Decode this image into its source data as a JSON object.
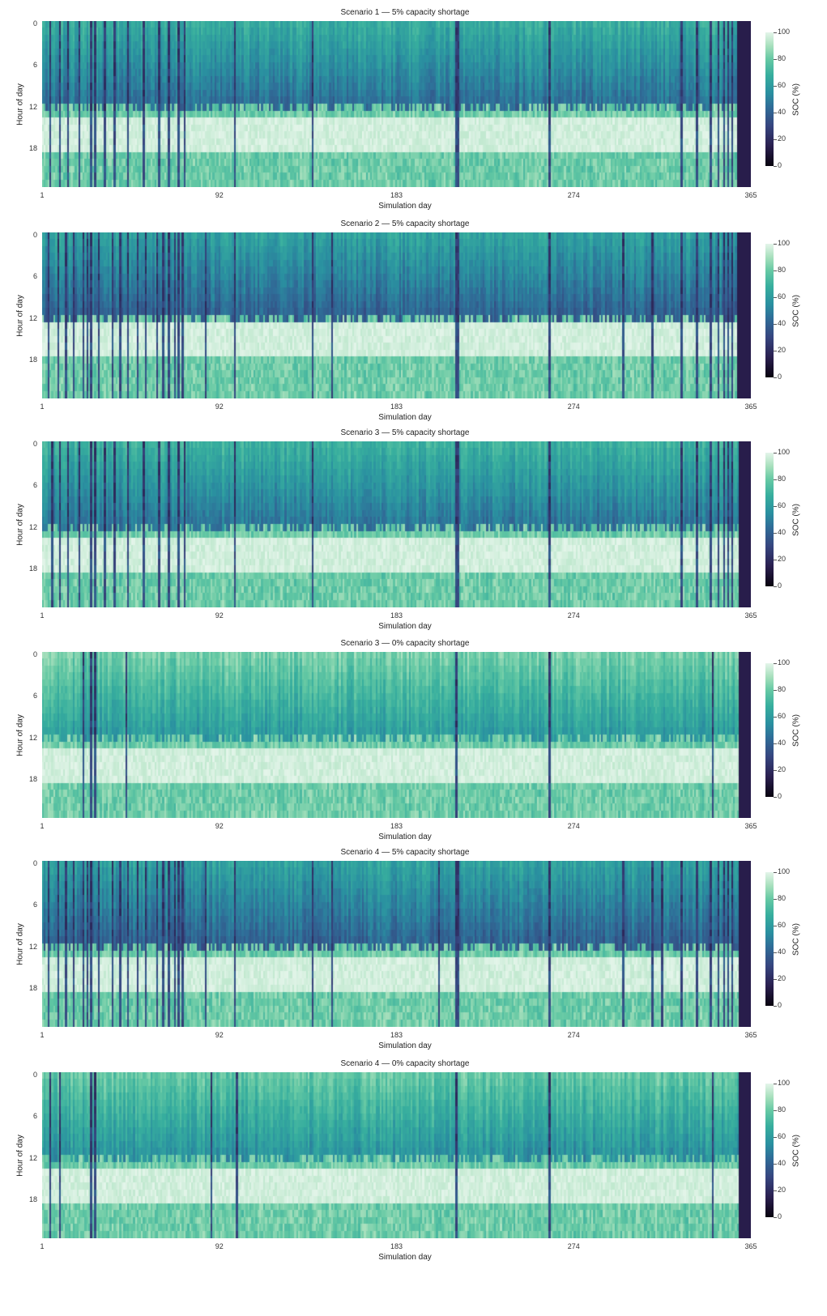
{
  "chart_data": [
    {
      "type": "heatmap",
      "title": "Scenario 1 — 5% capacity shortage",
      "xlabel": "Simulation day",
      "ylabel": "Hour of day",
      "x_ticks": [
        "1",
        "92",
        "183",
        "274",
        "365"
      ],
      "y_ticks": [
        "0",
        "6",
        "12",
        "18"
      ],
      "colorbar": {
        "label": "SOC (%)",
        "ticks": [
          "0",
          "20",
          "40",
          "60",
          "80",
          "100"
        ],
        "range": [
          0,
          100
        ]
      },
      "x_range": [
        1,
        365
      ],
      "y_range": [
        0,
        23
      ],
      "dark_days": [
        5,
        10,
        14,
        20,
        26,
        28,
        33,
        38,
        45,
        53,
        61,
        66,
        71,
        74,
        100,
        140,
        214,
        215,
        262,
        330,
        338,
        345,
        349,
        352,
        354,
        356
      ],
      "last_empty_day": 358,
      "daytime_full_hours": [
        14,
        18
      ],
      "base_soc": 60
    },
    {
      "type": "heatmap",
      "title": "Scenario 2 — 5% capacity shortage",
      "xlabel": "Simulation day",
      "ylabel": "Hour of day",
      "x_ticks": [
        "1",
        "92",
        "183",
        "274",
        "365"
      ],
      "y_ticks": [
        "0",
        "6",
        "12",
        "18"
      ],
      "colorbar": {
        "label": "SOC (%)",
        "ticks": [
          "0",
          "20",
          "40",
          "60",
          "80",
          "100"
        ],
        "range": [
          0,
          100
        ]
      },
      "x_range": [
        1,
        365
      ],
      "y_range": [
        0,
        23
      ],
      "dark_days": [
        4,
        9,
        13,
        17,
        22,
        24,
        26,
        30,
        37,
        41,
        45,
        50,
        54,
        60,
        63,
        66,
        69,
        71,
        73,
        85,
        100,
        140,
        150,
        214,
        215,
        262,
        300,
        315,
        330,
        338,
        345,
        349,
        352,
        354,
        356
      ],
      "last_empty_day": 358,
      "daytime_full_hours": [
        13,
        17
      ],
      "base_soc": 55
    },
    {
      "type": "heatmap",
      "title": "Scenario 3 — 5% capacity shortage",
      "xlabel": "Simulation day",
      "ylabel": "Hour of day",
      "x_ticks": [
        "1",
        "92",
        "183",
        "274",
        "365"
      ],
      "y_ticks": [
        "0",
        "6",
        "12",
        "18"
      ],
      "colorbar": {
        "label": "SOC (%)",
        "ticks": [
          "0",
          "20",
          "40",
          "60",
          "80",
          "100"
        ],
        "range": [
          0,
          100
        ]
      },
      "x_range": [
        1,
        365
      ],
      "y_range": [
        0,
        23
      ],
      "dark_days": [
        6,
        10,
        14,
        20,
        26,
        28,
        33,
        38,
        45,
        53,
        61,
        66,
        71,
        74,
        100,
        140,
        214,
        215,
        262,
        330,
        338,
        345,
        349,
        352,
        354,
        356
      ],
      "last_empty_day": 359,
      "daytime_full_hours": [
        14,
        18
      ],
      "base_soc": 62
    },
    {
      "type": "heatmap",
      "title": "Scenario 3 — 0% capacity shortage",
      "xlabel": "Simulation day",
      "ylabel": "Hour of day",
      "x_ticks": [
        "1",
        "92",
        "183",
        "274",
        "365"
      ],
      "y_ticks": [
        "0",
        "6",
        "12",
        "18"
      ],
      "colorbar": {
        "label": "SOC (%)",
        "ticks": [
          "0",
          "20",
          "40",
          "60",
          "80",
          "100"
        ],
        "range": [
          0,
          100
        ]
      },
      "x_range": [
        1,
        365
      ],
      "y_range": [
        0,
        23
      ],
      "dark_days": [
        22,
        26,
        28,
        44,
        214,
        262,
        346
      ],
      "last_empty_day": 359,
      "daytime_full_hours": [
        14,
        18
      ],
      "base_soc": 75
    },
    {
      "type": "heatmap",
      "title": "Scenario 4 — 5% capacity shortage",
      "xlabel": "Simulation day",
      "ylabel": "Hour of day",
      "x_ticks": [
        "1",
        "92",
        "183",
        "274",
        "365"
      ],
      "y_ticks": [
        "0",
        "6",
        "12",
        "18"
      ],
      "colorbar": {
        "label": "SOC (%)",
        "ticks": [
          "0",
          "20",
          "40",
          "60",
          "80",
          "100"
        ],
        "range": [
          0,
          100
        ]
      },
      "x_range": [
        1,
        365
      ],
      "y_range": [
        0,
        23
      ],
      "dark_days": [
        4,
        9,
        13,
        17,
        22,
        24,
        26,
        30,
        37,
        41,
        45,
        50,
        54,
        60,
        63,
        66,
        69,
        71,
        73,
        85,
        100,
        140,
        150,
        205,
        214,
        215,
        262,
        300,
        315,
        320,
        330,
        338,
        345,
        349,
        352,
        354,
        356
      ],
      "last_empty_day": 359,
      "daytime_full_hours": [
        14,
        18
      ],
      "base_soc": 55
    },
    {
      "type": "heatmap",
      "title": "Scenario 4 — 0% capacity shortage",
      "xlabel": "Simulation day",
      "ylabel": "Hour of day",
      "x_ticks": [
        "1",
        "92",
        "183",
        "274",
        "365"
      ],
      "y_ticks": [
        "0",
        "6",
        "12",
        "18"
      ],
      "colorbar": {
        "label": "SOC (%)",
        "ticks": [
          "0",
          "20",
          "40",
          "60",
          "80",
          "100"
        ],
        "range": [
          0,
          100
        ]
      },
      "x_range": [
        1,
        365
      ],
      "y_range": [
        0,
        23
      ],
      "dark_days": [
        5,
        10,
        26,
        28,
        88,
        101,
        214,
        262,
        346
      ],
      "last_empty_day": 359,
      "daytime_full_hours": [
        14,
        18
      ],
      "base_soc": 72
    }
  ]
}
